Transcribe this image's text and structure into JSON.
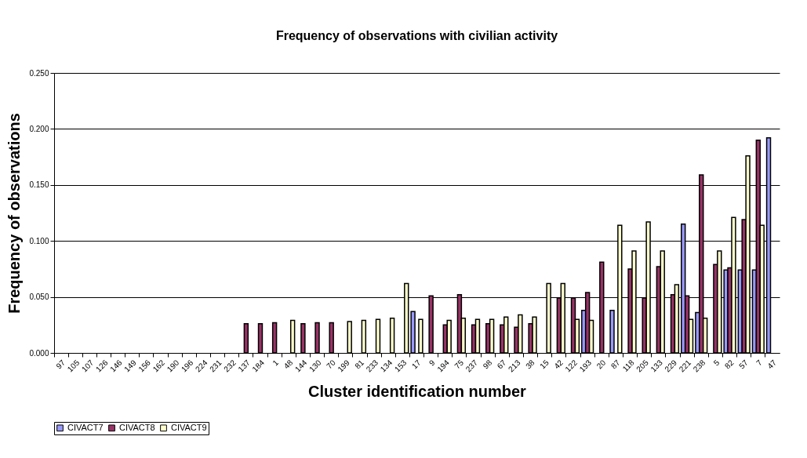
{
  "chart_data": {
    "type": "bar",
    "title": "Frequency of observations with civilian activity",
    "xlabel": "Cluster identification number",
    "ylabel": "Frequency of observations",
    "categories": [
      "97",
      "105",
      "107",
      "126",
      "146",
      "149",
      "156",
      "162",
      "190",
      "196",
      "224",
      "231",
      "232",
      "137",
      "184",
      "1",
      "48",
      "144",
      "130",
      "70",
      "199",
      "81",
      "233",
      "134",
      "153",
      "17",
      "9",
      "194",
      "75",
      "237",
      "98",
      "67",
      "213",
      "38",
      "15",
      "42",
      "122",
      "193",
      "20",
      "87",
      "118",
      "205",
      "133",
      "229",
      "221",
      "238",
      "5",
      "82",
      "57",
      "7",
      "47"
    ],
    "series": [
      {
        "name": "CIVACT7",
        "color": "#9999ff",
        "values": [
          null,
          null,
          null,
          null,
          null,
          null,
          null,
          null,
          null,
          null,
          null,
          null,
          null,
          null,
          null,
          null,
          null,
          null,
          null,
          null,
          null,
          null,
          null,
          null,
          null,
          0.037,
          null,
          null,
          null,
          null,
          null,
          null,
          null,
          null,
          null,
          null,
          null,
          0.038,
          null,
          0.038,
          null,
          null,
          null,
          null,
          0.115,
          0.036,
          null,
          0.074,
          0.074,
          0.074,
          0.192
        ]
      },
      {
        "name": "CIVACT8",
        "color": "#993366",
        "values": [
          null,
          null,
          null,
          null,
          null,
          null,
          null,
          null,
          null,
          null,
          null,
          null,
          null,
          0.026,
          0.026,
          0.027,
          null,
          0.026,
          0.027,
          0.027,
          null,
          null,
          null,
          null,
          null,
          null,
          0.051,
          0.025,
          0.052,
          0.025,
          0.026,
          0.025,
          0.023,
          0.026,
          null,
          0.049,
          0.049,
          0.054,
          0.081,
          null,
          0.075,
          0.049,
          0.077,
          0.052,
          0.051,
          0.159,
          0.079,
          0.076,
          0.119,
          0.19,
          null
        ]
      },
      {
        "name": "CIVACT9",
        "color": "#ffffcc",
        "values": [
          null,
          null,
          null,
          null,
          null,
          null,
          null,
          null,
          null,
          null,
          null,
          null,
          null,
          null,
          null,
          null,
          0.029,
          null,
          null,
          null,
          0.028,
          0.029,
          0.03,
          0.031,
          0.062,
          0.03,
          null,
          0.029,
          0.031,
          0.03,
          0.03,
          0.032,
          0.034,
          0.032,
          0.062,
          0.062,
          0.03,
          0.029,
          null,
          0.114,
          0.091,
          0.117,
          0.091,
          0.061,
          0.03,
          0.031,
          0.091,
          0.121,
          0.176,
          0.114,
          null
        ]
      }
    ],
    "ylim": [
      0,
      0.25
    ],
    "yticks": [
      {
        "value": 0,
        "label": "0.000"
      },
      {
        "value": 0.05,
        "label": "0.050"
      },
      {
        "value": 0.1,
        "label": "0.100"
      },
      {
        "value": 0.15,
        "label": "0.150"
      },
      {
        "value": 0.2,
        "label": "0.200"
      },
      {
        "value": 0.25,
        "label": "0.250"
      }
    ],
    "grid": "y",
    "legend": "bottom"
  }
}
